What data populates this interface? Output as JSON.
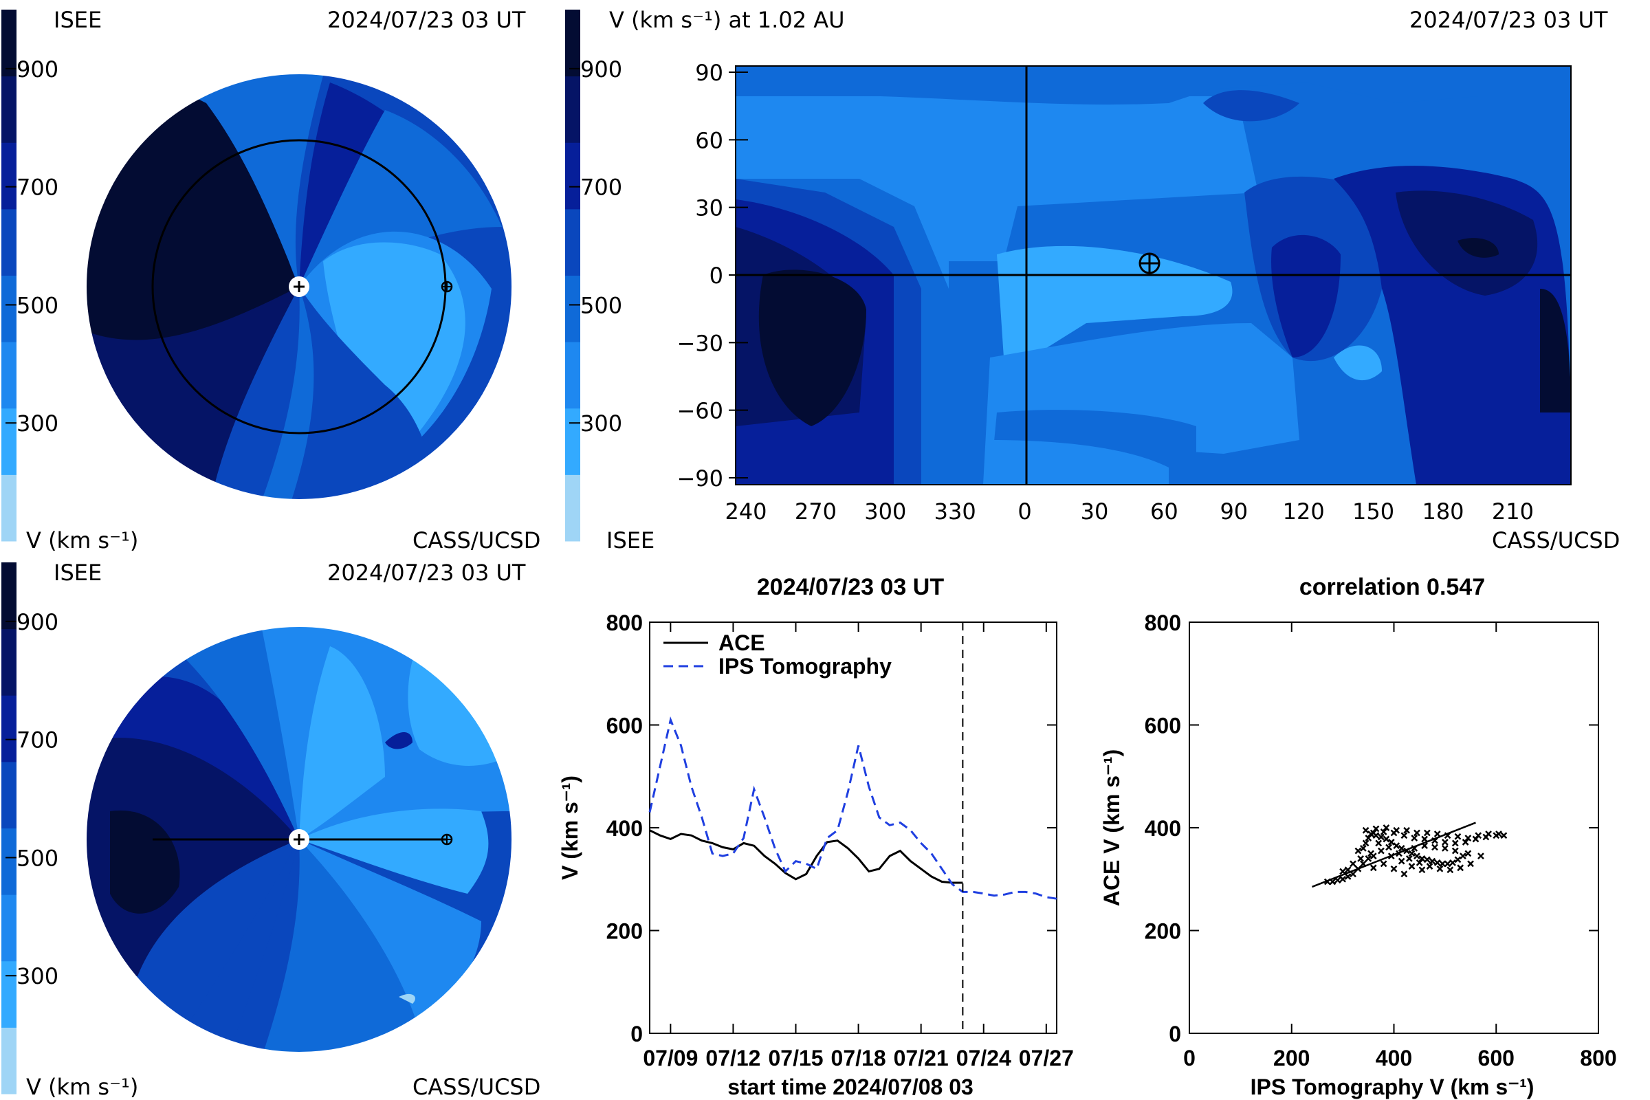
{
  "colorbar": {
    "levels": [
      "#9fd5f6",
      "#33aaff",
      "#1e88f0",
      "#0f6ad8",
      "#0a47bd",
      "#061f9a",
      "#051466",
      "#030c33"
    ],
    "ticks": [
      "900",
      "700",
      "500",
      "300"
    ],
    "tick_values": [
      900,
      700,
      500,
      300
    ],
    "range": [
      100,
      1000
    ],
    "label": "V (km s⁻¹)"
  },
  "panel_top_left": {
    "corner_left": "ISEE",
    "timestamp": "2024/07/23 03 UT",
    "footer_left": "V (km s⁻¹)",
    "footer_right": "CASS/UCSD"
  },
  "panel_top_right": {
    "title_left": "V (km s⁻¹) at 1.02 AU",
    "timestamp": "2024/07/23 03 UT",
    "footer_left": "ISEE",
    "footer_right": "CASS/UCSD",
    "x_ticks": [
      "240",
      "270",
      "300",
      "330",
      "0",
      "30",
      "60",
      "90",
      "120",
      "150",
      "180",
      "210"
    ],
    "y_ticks": [
      "90",
      "60",
      "30",
      "0",
      "−30",
      "−60",
      "−90"
    ],
    "earth_marker": {
      "longitude": 52,
      "latitude": 5
    }
  },
  "panel_bottom_left": {
    "corner_left": "ISEE",
    "timestamp": "2024/07/23 03 UT",
    "footer_left": "V (km s⁻¹)",
    "footer_right": "CASS/UCSD"
  },
  "chart_data": [
    {
      "type": "line",
      "title": "2024/07/23 03 UT",
      "xlabel": "start time 2024/07/08 03",
      "ylabel": "V (km s⁻¹)",
      "ylim": [
        0,
        800
      ],
      "xlim": [
        0,
        19.5
      ],
      "y_ticks": [
        "0",
        "200",
        "400",
        "600",
        "800"
      ],
      "x_ticks": [
        "07/09",
        "07/12",
        "07/15",
        "07/18",
        "07/21",
        "07/24",
        "07/27"
      ],
      "x_tick_values": [
        1,
        4,
        7,
        10,
        13,
        16,
        19
      ],
      "current_time_day": 15,
      "legend": [
        {
          "name": "ACE",
          "style": "solid"
        },
        {
          "name": "IPS Tomography",
          "style": "dashed"
        }
      ],
      "series": [
        {
          "name": "ACE",
          "color": "#000000",
          "x": [
            0,
            0.5,
            1,
            1.5,
            2,
            2.5,
            3,
            3.5,
            4,
            4.5,
            5,
            5.5,
            6,
            6.5,
            7,
            7.5,
            8,
            8.5,
            9,
            9.5,
            10,
            10.5,
            11,
            11.5,
            12,
            12.5,
            13,
            13.5,
            14,
            14.5,
            15
          ],
          "y": [
            395,
            385,
            378,
            388,
            385,
            375,
            370,
            362,
            358,
            370,
            365,
            345,
            330,
            312,
            300,
            310,
            345,
            372,
            375,
            360,
            340,
            315,
            320,
            345,
            355,
            335,
            320,
            305,
            295,
            293,
            293
          ]
        },
        {
          "name": "IPS Tomography",
          "color": "#1f3fe0",
          "x": [
            0,
            0.5,
            1,
            1.5,
            2,
            2.5,
            3,
            3.5,
            4,
            4.5,
            5,
            5.5,
            6,
            6.5,
            7,
            7.5,
            8,
            8.5,
            9,
            9.5,
            10,
            10.5,
            11,
            11.5,
            12,
            12.5,
            13,
            13.5,
            14,
            14.5,
            15,
            15.5,
            16,
            16.5,
            17,
            17.5,
            18,
            18.5,
            19,
            19.5
          ],
          "y": [
            430,
            520,
            610,
            560,
            480,
            420,
            350,
            345,
            350,
            380,
            475,
            420,
            360,
            315,
            335,
            330,
            320,
            380,
            395,
            470,
            560,
            480,
            420,
            405,
            410,
            395,
            370,
            350,
            320,
            290,
            275,
            275,
            272,
            268,
            270,
            275,
            275,
            272,
            265,
            262
          ]
        }
      ]
    },
    {
      "type": "scatter",
      "title": "correlation 0.547",
      "xlabel": "IPS Tomography V (km s⁻¹)",
      "ylabel": "ACE V (km s⁻¹)",
      "xlim": [
        0,
        800
      ],
      "ylim": [
        0,
        800
      ],
      "x_ticks": [
        "0",
        "200",
        "400",
        "600",
        "800"
      ],
      "y_ticks": [
        "0",
        "200",
        "400",
        "600",
        "800"
      ],
      "fit_line": {
        "x": [
          240,
          560
        ],
        "y": [
          285,
          410
        ]
      },
      "points": [
        [
          270,
          295
        ],
        [
          280,
          295
        ],
        [
          290,
          298
        ],
        [
          300,
          300
        ],
        [
          310,
          305
        ],
        [
          320,
          310
        ],
        [
          330,
          320
        ],
        [
          340,
          330
        ],
        [
          350,
          340
        ],
        [
          360,
          345
        ],
        [
          345,
          370
        ],
        [
          350,
          380
        ],
        [
          355,
          388
        ],
        [
          365,
          385
        ],
        [
          375,
          382
        ],
        [
          385,
          378
        ],
        [
          395,
          372
        ],
        [
          405,
          365
        ],
        [
          415,
          360
        ],
        [
          425,
          355
        ],
        [
          435,
          350
        ],
        [
          445,
          345
        ],
        [
          455,
          340
        ],
        [
          465,
          338
        ],
        [
          475,
          335
        ],
        [
          485,
          332
        ],
        [
          495,
          330
        ],
        [
          505,
          330
        ],
        [
          515,
          332
        ],
        [
          525,
          338
        ],
        [
          535,
          345
        ],
        [
          545,
          350
        ],
        [
          360,
          390
        ],
        [
          380,
          392
        ],
        [
          400,
          390
        ],
        [
          420,
          385
        ],
        [
          440,
          380
        ],
        [
          460,
          378
        ],
        [
          480,
          375
        ],
        [
          500,
          372
        ],
        [
          520,
          370
        ],
        [
          540,
          372
        ],
        [
          560,
          378
        ],
        [
          580,
          382
        ],
        [
          600,
          385
        ],
        [
          615,
          385
        ],
        [
          330,
          355
        ],
        [
          340,
          360
        ],
        [
          370,
          370
        ],
        [
          390,
          362
        ],
        [
          410,
          350
        ],
        [
          430,
          340
        ],
        [
          450,
          332
        ],
        [
          470,
          325
        ],
        [
          490,
          320
        ],
        [
          510,
          318
        ],
        [
          530,
          322
        ],
        [
          550,
          330
        ],
        [
          570,
          345
        ],
        [
          320,
          330
        ],
        [
          335,
          340
        ],
        [
          355,
          350
        ],
        [
          375,
          355
        ],
        [
          395,
          345
        ],
        [
          415,
          335
        ],
        [
          435,
          325
        ],
        [
          455,
          318
        ],
        [
          300,
          315
        ],
        [
          310,
          318
        ],
        [
          400,
          320
        ],
        [
          420,
          310
        ],
        [
          380,
          330
        ],
        [
          360,
          322
        ],
        [
          440,
          360
        ],
        [
          460,
          365
        ],
        [
          480,
          362
        ],
        [
          500,
          360
        ],
        [
          520,
          355
        ],
        [
          345,
          395
        ],
        [
          365,
          398
        ],
        [
          385,
          400
        ],
        [
          405,
          395
        ],
        [
          425,
          395
        ],
        [
          445,
          390
        ],
        [
          465,
          390
        ],
        [
          485,
          388
        ],
        [
          505,
          385
        ],
        [
          525,
          383
        ],
        [
          545,
          380
        ],
        [
          565,
          385
        ],
        [
          585,
          388
        ],
        [
          605,
          388
        ]
      ]
    }
  ]
}
